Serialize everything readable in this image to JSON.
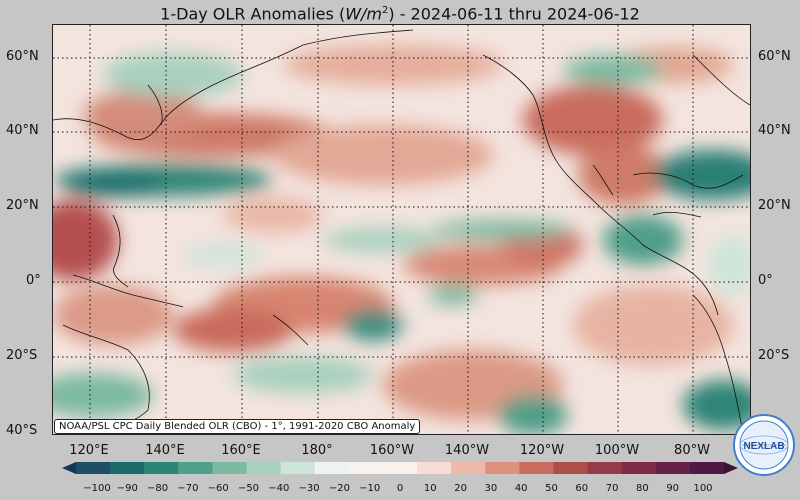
{
  "title": {
    "prefix": "1-Day OLR Anomalies (",
    "unit": "W/m",
    "unit_exp": "2",
    "suffix": ") - 2024-06-11 thru 2024-06-12"
  },
  "map": {
    "lat_labels_left": [
      "60°N",
      "40°N",
      "20°N",
      "0°",
      "20°S",
      "40°S"
    ],
    "lat_labels_right": [
      "60°N",
      "40°N",
      "20°N",
      "0°",
      "20°S"
    ],
    "lon_labels": [
      "120°E",
      "140°E",
      "160°E",
      "180°",
      "160°W",
      "140°W",
      "120°W",
      "100°W",
      "80°W"
    ],
    "credit": "NOAA/PSL CPC Daily Blended OLR (CBO) - 1°, 1991-2020 CBO Anomaly",
    "logo_text": "NEXLAB",
    "logo_colors": {
      "ring": "#3f7fd1",
      "inner": "#e8f0fb",
      "text": "#1f4f9c"
    }
  },
  "colorbar": {
    "ticks": [
      "−100",
      "−90",
      "−80",
      "−70",
      "−60",
      "−50",
      "−40",
      "−30",
      "−20",
      "−10",
      "0",
      "10",
      "20",
      "30",
      "40",
      "50",
      "60",
      "70",
      "80",
      "90",
      "100"
    ],
    "range": [
      -100,
      100
    ],
    "colors": [
      "#173556",
      "#1e4f66",
      "#1c6b6b",
      "#2a8577",
      "#4f9f89",
      "#7cb9a1",
      "#a7d0bd",
      "#cfe5da",
      "#eef5f1",
      "#f7f3f1",
      "#fbf2ee",
      "#f6dcd2",
      "#eeb9a8",
      "#de9280",
      "#c96c5d",
      "#b04e4a",
      "#963a48",
      "#7d2b49",
      "#65204a",
      "#4f1a42",
      "#3a1434"
    ]
  }
}
